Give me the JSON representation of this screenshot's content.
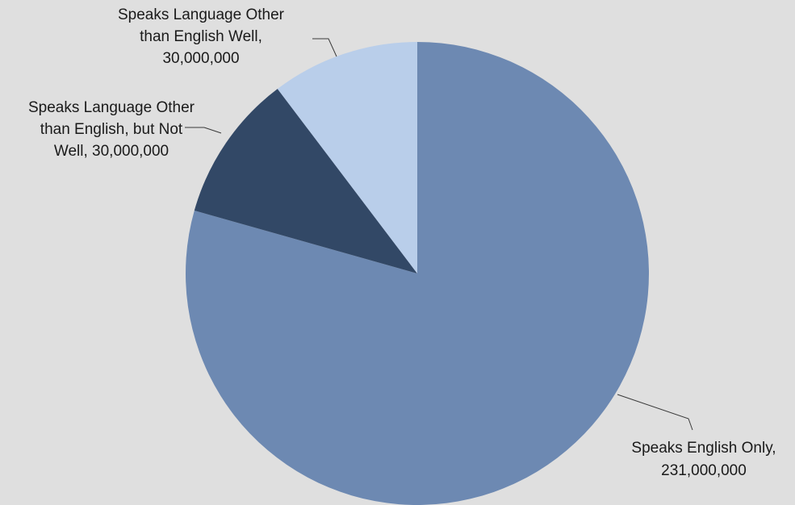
{
  "chart_data": {
    "type": "pie",
    "title": "",
    "slices": [
      {
        "name": "Speaks English Only",
        "value": 231000000,
        "value_label": "231,000,000",
        "color": "#6d89b2",
        "label_lines": [
          "Speaks English Only,",
          "231,000,000"
        ]
      },
      {
        "name": "Speaks Language Other than English, but Not Well",
        "value": 30000000,
        "value_label": "30,000,000",
        "color": "#324866",
        "label_lines": [
          "Speaks Language Other",
          "than English, but Not",
          "Well, 30,000,000"
        ]
      },
      {
        "name": "Speaks Language Other than English Well",
        "value": 30000000,
        "value_label": "30,000,000",
        "color": "#b9ceea",
        "label_lines": [
          "Speaks Language Other",
          "than English Well,",
          "30,000,000"
        ]
      }
    ],
    "start_angle": "12 o'clock",
    "direction": "clockwise",
    "legend": "none (data labels with leader lines)",
    "background_color": "#dfdfdf"
  }
}
